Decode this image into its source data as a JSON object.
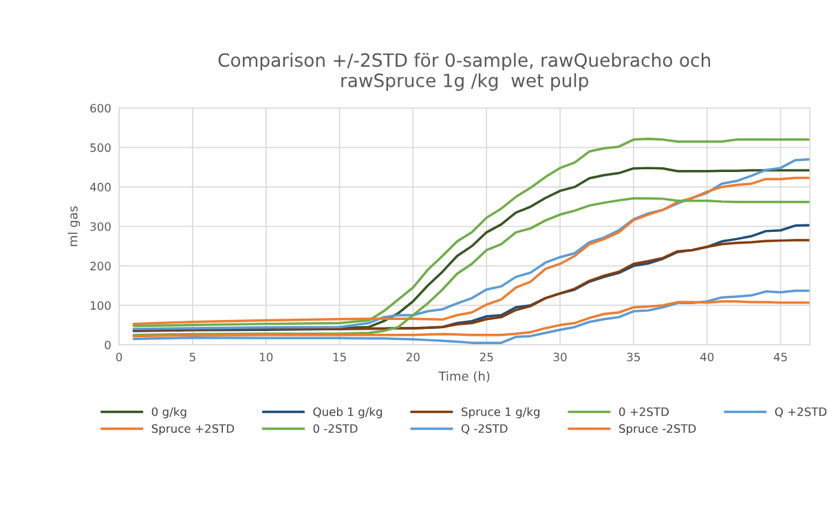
{
  "chart_data": {
    "type": "line",
    "title": "Comparison +/-2STD för 0-sample, rawQuebracho och\nrawSpruce 1g /kg  wet pulp",
    "xlabel": "Time (h)",
    "ylabel": "ml gas",
    "x": [
      1,
      5,
      10,
      15,
      17,
      18,
      19,
      20,
      21,
      22,
      23,
      24,
      25,
      26,
      27,
      28,
      29,
      30,
      31,
      32,
      33,
      34,
      35,
      36,
      37,
      38,
      39,
      40,
      41,
      42,
      43,
      44,
      45,
      46,
      47
    ],
    "series": [
      {
        "name": "0 g/kg",
        "color": "#375623",
        "values": [
          37,
          39,
          41,
          42,
          45,
          60,
          80,
          110,
          150,
          185,
          225,
          250,
          285,
          305,
          335,
          350,
          372,
          390,
          400,
          422,
          430,
          435,
          447,
          448,
          447,
          440,
          440,
          440,
          441,
          441,
          442,
          442,
          442,
          442,
          442
        ]
      },
      {
        "name": "Queb 1 g/kg",
        "color": "#1f4e79",
        "values": [
          35,
          37,
          38,
          40,
          41,
          41,
          42,
          42,
          43,
          45,
          55,
          60,
          72,
          75,
          95,
          100,
          118,
          130,
          140,
          160,
          172,
          182,
          200,
          206,
          218,
          235,
          240,
          248,
          262,
          268,
          275,
          288,
          290,
          302,
          303
        ]
      },
      {
        "name": "Spruce 1 g/kg",
        "color": "#843c0c",
        "values": [
          38,
          39,
          40,
          40,
          41,
          41,
          42,
          42,
          43,
          45,
          52,
          55,
          65,
          70,
          88,
          98,
          118,
          130,
          142,
          162,
          175,
          185,
          205,
          212,
          220,
          237,
          240,
          248,
          255,
          258,
          260,
          263,
          264,
          265,
          265
        ]
      },
      {
        "name": "0 +2STD",
        "color": "#70ad47",
        "values": [
          48,
          50,
          53,
          55,
          62,
          85,
          115,
          145,
          190,
          225,
          262,
          285,
          322,
          345,
          375,
          398,
          425,
          448,
          462,
          490,
          498,
          502,
          520,
          522,
          520,
          515,
          515,
          515,
          515,
          520,
          520,
          520,
          520,
          520,
          520
        ]
      },
      {
        "name": "Q +2STD",
        "color": "#5b9bd5",
        "values": [
          40,
          42,
          44,
          45,
          55,
          70,
          75,
          75,
          85,
          90,
          105,
          118,
          140,
          148,
          172,
          183,
          208,
          222,
          232,
          260,
          272,
          290,
          318,
          333,
          342,
          358,
          372,
          385,
          408,
          415,
          428,
          443,
          448,
          468,
          470
        ]
      },
      {
        "name": "Spruce +2STD",
        "color": "#ed7d31",
        "values": [
          53,
          58,
          62,
          65,
          66,
          66,
          66,
          66,
          65,
          64,
          75,
          82,
          102,
          115,
          145,
          160,
          192,
          205,
          225,
          255,
          268,
          285,
          316,
          330,
          342,
          362,
          372,
          388,
          400,
          405,
          408,
          420,
          420,
          423,
          423
        ]
      },
      {
        "name": "0 -2STD",
        "color": "#70ad47",
        "values": [
          25,
          27,
          28,
          28,
          30,
          35,
          45,
          75,
          105,
          140,
          180,
          205,
          240,
          255,
          285,
          295,
          315,
          330,
          340,
          353,
          360,
          366,
          371,
          371,
          370,
          365,
          365,
          365,
          363,
          362,
          362,
          362,
          362,
          362,
          362
        ]
      },
      {
        "name": "Q -2STD",
        "color": "#5b9bd5",
        "values": [
          15,
          18,
          17,
          17,
          16,
          16,
          15,
          14,
          12,
          10,
          8,
          5,
          5,
          5,
          20,
          22,
          30,
          38,
          45,
          58,
          65,
          70,
          85,
          87,
          95,
          106,
          106,
          110,
          120,
          122,
          125,
          135,
          133,
          137,
          137
        ]
      },
      {
        "name": "Spruce -2STD",
        "color": "#ed7d31",
        "values": [
          22,
          24,
          25,
          25,
          25,
          25,
          25,
          25,
          26,
          27,
          26,
          25,
          25,
          25,
          28,
          32,
          42,
          50,
          55,
          68,
          78,
          82,
          95,
          97,
          100,
          108,
          108,
          107,
          110,
          110,
          108,
          108,
          107,
          107,
          107
        ]
      }
    ],
    "xlim": [
      0,
      47
    ],
    "xticks": [
      0,
      5,
      10,
      15,
      20,
      25,
      30,
      35,
      40,
      45
    ],
    "ylim": [
      0,
      600
    ],
    "yticks": [
      0,
      100,
      200,
      300,
      400,
      500,
      600
    ],
    "grid": true,
    "legend": "bottom",
    "marker": "none",
    "line_style": "solid"
  }
}
